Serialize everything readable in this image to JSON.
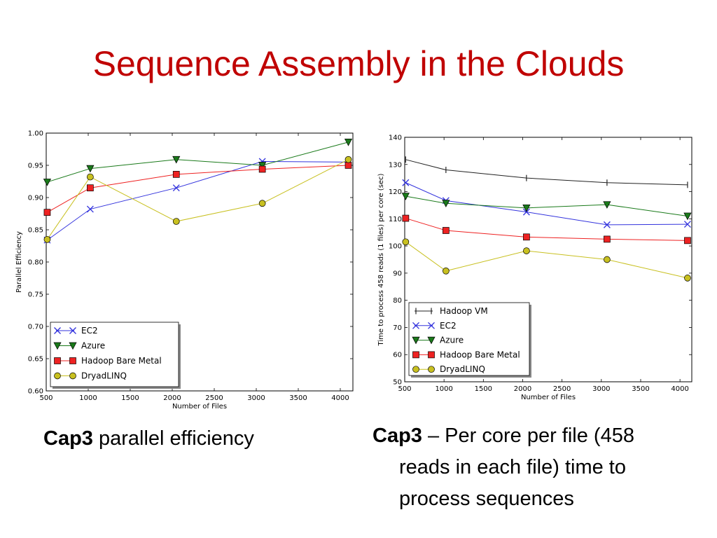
{
  "slide": {
    "title": "Sequence Assembly in the Clouds"
  },
  "captions": {
    "left_bold": "Cap3",
    "left_text": " parallel efficiency",
    "right_bold": "Cap3",
    "right_line1": " – Per core per file (458",
    "right_line2": "reads in each file) time to",
    "right_line3": "process sequences"
  },
  "chart_data": [
    {
      "type": "line",
      "title": "",
      "xlabel": "Number of Files",
      "ylabel": "Parallel Efficiency",
      "xlim": [
        500,
        4150
      ],
      "ylim": [
        0.6,
        1.0
      ],
      "xticks": [
        500,
        1000,
        1500,
        2000,
        2500,
        3000,
        3500,
        4000
      ],
      "xtick_labels": [
        "500",
        "1000",
        "1500",
        "2000",
        "2500",
        "3000",
        "3500",
        "4000"
      ],
      "yticks": [
        0.6,
        0.65,
        0.7,
        0.75,
        0.8,
        0.85,
        0.9,
        0.95,
        1.0
      ],
      "ytick_labels": [
        "0.60",
        "0.65",
        "0.70",
        "0.75",
        "0.80",
        "0.85",
        "0.90",
        "0.95",
        "1.00"
      ],
      "grid": false,
      "legend_position": "lower-left",
      "series": [
        {
          "name": "EC2",
          "marker": "x",
          "color": "#3333dd",
          "x": [
            512,
            1024,
            2048,
            3072,
            4096
          ],
          "values": [
            0.834,
            0.882,
            0.915,
            0.956,
            0.955
          ]
        },
        {
          "name": "Azure",
          "marker": "triangle-down",
          "color": "#1a7a1a",
          "x": [
            512,
            1024,
            2048,
            3072,
            4096
          ],
          "values": [
            0.924,
            0.945,
            0.959,
            0.95,
            0.986
          ]
        },
        {
          "name": "Hadoop Bare Metal",
          "marker": "square",
          "color": "#ee2222",
          "x": [
            512,
            1024,
            2048,
            3072,
            4096
          ],
          "values": [
            0.877,
            0.915,
            0.936,
            0.944,
            0.95
          ]
        },
        {
          "name": "DryadLINQ",
          "marker": "circle",
          "color": "#c8c020",
          "x": [
            512,
            1024,
            2048,
            3072,
            4096
          ],
          "values": [
            0.835,
            0.932,
            0.863,
            0.891,
            0.959
          ]
        }
      ]
    },
    {
      "type": "line",
      "title": "",
      "xlabel": "Number of Files",
      "ylabel": "Time to process 458 reads (1 files) per core (sec)",
      "xlim": [
        500,
        4150
      ],
      "ylim": [
        50,
        140
      ],
      "xticks": [
        500,
        1000,
        1500,
        2000,
        2500,
        3000,
        3500,
        4000
      ],
      "xtick_labels": [
        "500",
        "1000",
        "1500",
        "2000",
        "2500",
        "3000",
        "3500",
        "4000"
      ],
      "yticks": [
        50,
        60,
        70,
        80,
        90,
        100,
        110,
        120,
        130,
        140
      ],
      "ytick_labels": [
        "50",
        "60",
        "70",
        "80",
        "90",
        "100",
        "110",
        "120",
        "130",
        "140"
      ],
      "grid": false,
      "legend_position": "lower-left",
      "series": [
        {
          "name": "Hadoop VM",
          "marker": "vline",
          "color": "#222222",
          "x": [
            512,
            1024,
            2048,
            3072,
            4096
          ],
          "values": [
            131.8,
            128.0,
            125.0,
            123.3,
            122.5
          ]
        },
        {
          "name": "EC2",
          "marker": "x",
          "color": "#3333dd",
          "x": [
            512,
            1024,
            2048,
            3072,
            4096
          ],
          "values": [
            123.3,
            116.7,
            112.5,
            107.8,
            108.0
          ]
        },
        {
          "name": "Azure",
          "marker": "triangle-down",
          "color": "#1a7a1a",
          "x": [
            512,
            1024,
            2048,
            3072,
            4096
          ],
          "values": [
            118.3,
            115.7,
            114.0,
            115.2,
            111.0
          ]
        },
        {
          "name": "Hadoop Bare Metal",
          "marker": "square",
          "color": "#ee2222",
          "x": [
            512,
            1024,
            2048,
            3072,
            4096
          ],
          "values": [
            110.2,
            105.7,
            103.3,
            102.5,
            102.0
          ]
        },
        {
          "name": "DryadLINQ",
          "marker": "circle",
          "color": "#c8c020",
          "x": [
            512,
            1024,
            2048,
            3072,
            4096
          ],
          "values": [
            101.5,
            90.8,
            98.2,
            95.0,
            88.2
          ]
        }
      ]
    }
  ]
}
